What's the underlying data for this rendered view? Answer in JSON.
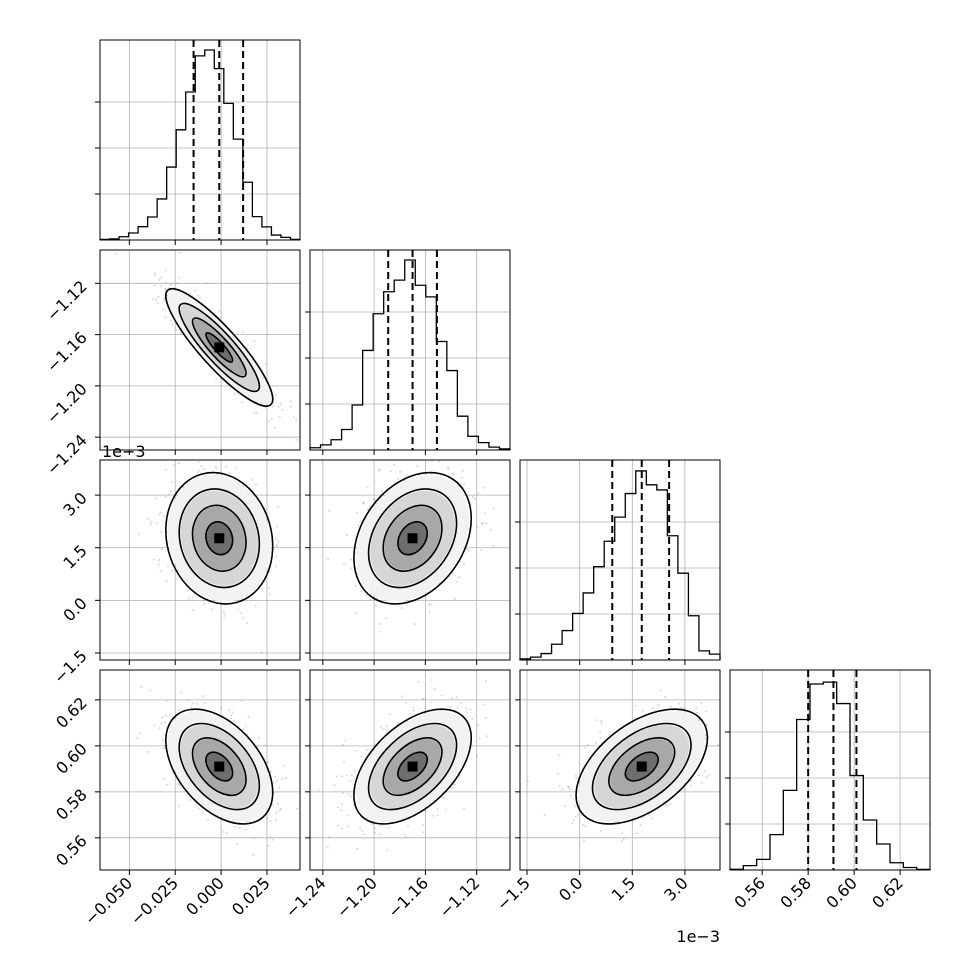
{
  "chart_data": {
    "type": "corner",
    "parameters": [
      {
        "ticks": [
          -0.05,
          -0.025,
          0.0,
          0.025
        ],
        "tick_labels": [
          "−0.050",
          "−0.025",
          "0.000",
          "0.025"
        ],
        "range": [
          -0.066,
          0.043
        ],
        "quantiles": [
          -0.015,
          -0.001,
          0.012
        ],
        "hist": [
          0.003,
          0.006,
          0.017,
          0.037,
          0.07,
          0.121,
          0.216,
          0.384,
          0.58,
          0.779,
          0.969,
          1.0,
          0.902,
          0.719,
          0.531,
          0.304,
          0.123,
          0.069,
          0.026,
          0.014,
          0.003
        ]
      },
      {
        "ticks": [
          -1.24,
          -1.2,
          -1.16,
          -1.12
        ],
        "tick_labels": [
          "−1.24",
          "−1.20",
          "−1.16",
          "−1.12"
        ],
        "range": [
          -1.25,
          -1.094
        ],
        "quantiles": [
          -1.189,
          -1.17,
          -1.151
        ],
        "hist": [
          0.012,
          0.027,
          0.054,
          0.108,
          0.237,
          0.524,
          0.717,
          0.833,
          0.894,
          1.0,
          0.867,
          0.806,
          0.571,
          0.418,
          0.178,
          0.072,
          0.039,
          0.015,
          0.006
        ]
      },
      {
        "ticks": [
          -1.5,
          0.0,
          1.5,
          3.0
        ],
        "tick_labels": [
          "−1.5",
          "0.0",
          "1.5",
          "3.0"
        ],
        "offset_text": "1e−3",
        "range": [
          -1.7,
          4.0
        ],
        "quantiles": [
          0.93,
          1.77,
          2.55
        ],
        "hist": [
          0.006,
          0.015,
          0.034,
          0.083,
          0.155,
          0.245,
          0.353,
          0.491,
          0.625,
          0.752,
          0.876,
          0.995,
          0.922,
          0.895,
          0.654,
          0.457,
          0.233,
          0.048,
          0.031
        ]
      },
      {
        "ticks": [
          0.56,
          0.58,
          0.6,
          0.62
        ],
        "tick_labels": [
          "0.56",
          "0.58",
          "0.60",
          "0.62"
        ],
        "range": [
          0.546,
          0.633
        ],
        "quantiles": [
          0.58,
          0.591,
          0.601
        ],
        "hist": [
          0.004,
          0.023,
          0.056,
          0.186,
          0.419,
          0.792,
          0.979,
          0.989,
          0.876,
          0.497,
          0.263,
          0.137,
          0.038,
          0.013,
          0.003
        ]
      }
    ],
    "pairs": [
      {
        "x": 0,
        "y": 1,
        "mean": [
          -0.001,
          -1.17
        ],
        "sd": [
          0.014,
          0.022
        ],
        "rho": -0.88
      },
      {
        "x": 0,
        "y": 2,
        "mean": [
          -0.001,
          1.77
        ],
        "sd": [
          0.014,
          0.9
        ],
        "rho": -0.12
      },
      {
        "x": 1,
        "y": 2,
        "mean": [
          -1.17,
          1.77
        ],
        "sd": [
          0.022,
          0.9
        ],
        "rho": 0.3
      },
      {
        "x": 0,
        "y": 3,
        "mean": [
          -0.001,
          0.591
        ],
        "sd": [
          0.014,
          0.012
        ],
        "rho": -0.45
      },
      {
        "x": 1,
        "y": 3,
        "mean": [
          -1.17,
          0.591
        ],
        "sd": [
          0.022,
          0.012
        ],
        "rho": 0.5
      },
      {
        "x": 2,
        "y": 3,
        "mean": [
          1.77,
          0.591
        ],
        "sd": [
          0.9,
          0.012
        ],
        "rho": 0.5
      }
    ],
    "contour_levels_sigma": [
      0.5,
      1.0,
      1.5,
      2.0
    ],
    "grid": true,
    "colors": {
      "line": "#000000",
      "grid": "#b0b0b0",
      "points": "#8c8c8c"
    }
  }
}
